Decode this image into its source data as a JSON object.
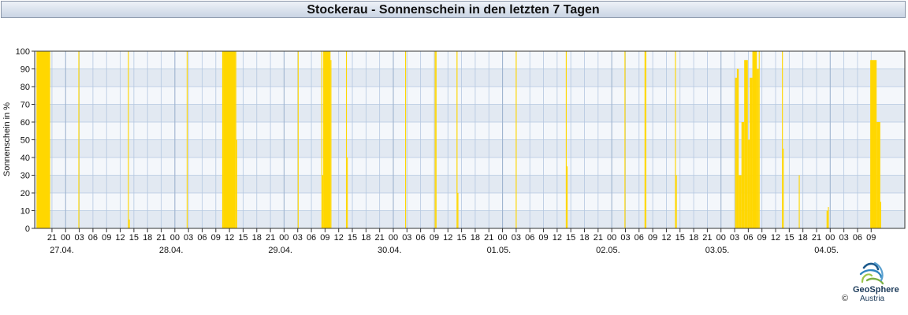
{
  "header": {
    "title": "Stockerau - Sonnenschein in den letzten 7 Tagen"
  },
  "logo": {
    "name": "GeoSphere",
    "country": "Austria",
    "copyright": "©"
  },
  "colors": {
    "bar": "#FFD700",
    "band_dark": "#E2E9F2",
    "band_light": "#F4F7FB",
    "grid": "#B4C7E0"
  },
  "chart_data": {
    "type": "area",
    "title": "Stockerau - Sonnenschein in den letzten 7 Tagen",
    "xlabel": "",
    "ylabel": "Sonnenschein in %",
    "ylim": [
      0,
      100
    ],
    "yticks": [
      0,
      10,
      20,
      30,
      40,
      50,
      60,
      70,
      80,
      90,
      100
    ],
    "x_unit": "hour offset",
    "xlim": [
      -3.8,
      187.4
    ],
    "hour_tick_labels": [
      "21",
      "00",
      "03",
      "06",
      "09",
      "12",
      "15",
      "18",
      "21",
      "00",
      "03",
      "06",
      "09",
      "12",
      "15",
      "18",
      "21",
      "00",
      "03",
      "06",
      "09",
      "12",
      "15",
      "18",
      "21",
      "00",
      "03",
      "06",
      "09",
      "12",
      "15",
      "18",
      "21",
      "00",
      "03",
      "06",
      "09",
      "12",
      "15",
      "18",
      "21",
      "00",
      "03",
      "06",
      "09",
      "12",
      "15",
      "18",
      "21",
      "00",
      "03",
      "06",
      "09",
      "12",
      "15",
      "18",
      "21",
      "00",
      "03",
      "06",
      "09"
    ],
    "date_labels": [
      "27.04.",
      "28.04.",
      "29.04.",
      "30.04.",
      "01.05.",
      "02.05.",
      "03.05.",
      "04.05."
    ],
    "grid": true,
    "series": [
      {
        "values": [
          [
            -3.4,
            100
          ],
          [
            -0.6,
            100
          ],
          [
            5.8,
            100
          ],
          [
            16.7,
            100
          ],
          [
            16.9,
            5
          ],
          [
            29.6,
            100
          ],
          [
            37.4,
            100
          ],
          [
            37.6,
            100
          ],
          [
            40.3,
            100
          ],
          [
            40.5,
            50
          ],
          [
            54.0,
            100
          ],
          [
            59.2,
            100
          ],
          [
            59.4,
            30
          ],
          [
            59.6,
            100
          ],
          [
            60.8,
            100
          ],
          [
            61.2,
            95
          ],
          [
            64.6,
            100
          ],
          [
            64.8,
            40
          ],
          [
            77.6,
            100
          ],
          [
            84.1,
            100
          ],
          [
            84.3,
            100
          ],
          [
            88.9,
            100
          ],
          [
            89.1,
            20
          ],
          [
            101.9,
            100
          ],
          [
            112.9,
            100
          ],
          [
            113.1,
            35
          ],
          [
            125.8,
            100
          ],
          [
            130.2,
            100
          ],
          [
            130.4,
            100
          ],
          [
            136.9,
            100
          ],
          [
            137.1,
            30
          ],
          [
            150.1,
            85
          ],
          [
            150.5,
            90
          ],
          [
            150.9,
            30
          ],
          [
            151.5,
            60
          ],
          [
            152.1,
            95
          ],
          [
            152.9,
            50
          ],
          [
            153.3,
            85
          ],
          [
            153.9,
            100
          ],
          [
            154.9,
            90
          ],
          [
            155.3,
            100
          ],
          [
            160.4,
            100
          ],
          [
            160.6,
            45
          ],
          [
            164.1,
            30
          ],
          [
            170.2,
            10
          ],
          [
            170.5,
            12
          ],
          [
            179.8,
            95
          ],
          [
            181.2,
            60
          ],
          [
            182.0,
            15
          ]
        ]
      }
    ]
  }
}
